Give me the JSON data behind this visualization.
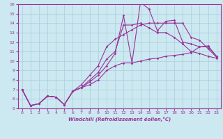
{
  "xlabel": "Windchill (Refroidissement éolien,°C)",
  "background_color": "#cce8f0",
  "line_color": "#993399",
  "xlim": [
    -0.5,
    23.5
  ],
  "ylim": [
    5,
    16
  ],
  "xticks": [
    0,
    1,
    2,
    3,
    4,
    5,
    6,
    7,
    8,
    9,
    10,
    11,
    12,
    13,
    14,
    15,
    16,
    17,
    18,
    19,
    20,
    21,
    22,
    23
  ],
  "yticks": [
    5,
    6,
    7,
    8,
    9,
    10,
    11,
    12,
    13,
    14,
    15,
    16
  ],
  "lines": [
    {
      "x": [
        0,
        1,
        2,
        3,
        4,
        5,
        6,
        7,
        8,
        9,
        10,
        11,
        12,
        13,
        14,
        15,
        16,
        17,
        18,
        19,
        20,
        21,
        22,
        23
      ],
      "y": [
        7.0,
        5.3,
        5.5,
        6.3,
        6.2,
        5.4,
        6.8,
        7.2,
        7.5,
        8.0,
        9.0,
        9.5,
        9.8,
        9.8,
        10.0,
        10.2,
        10.3,
        10.5,
        10.6,
        10.7,
        10.9,
        11.5,
        11.6,
        10.5
      ]
    },
    {
      "x": [
        0,
        1,
        2,
        3,
        4,
        5,
        6,
        7,
        8,
        9,
        10,
        11,
        12,
        13,
        14,
        15,
        16,
        17,
        18,
        19,
        20,
        21,
        22,
        23
      ],
      "y": [
        7.0,
        5.3,
        5.5,
        6.3,
        6.2,
        5.4,
        6.8,
        7.2,
        7.8,
        8.5,
        9.5,
        10.8,
        14.8,
        9.8,
        16.2,
        15.5,
        13.2,
        14.2,
        14.3,
        12.0,
        11.8,
        11.5,
        11.5,
        10.5
      ]
    },
    {
      "x": [
        0,
        1,
        2,
        3,
        4,
        5,
        6,
        7,
        8,
        9,
        10,
        11,
        12,
        13,
        14,
        15,
        16,
        17,
        18,
        19,
        20,
        21,
        22,
        23
      ],
      "y": [
        7.0,
        5.3,
        5.5,
        6.3,
        6.2,
        5.4,
        6.8,
        7.2,
        8.0,
        8.8,
        10.2,
        11.0,
        13.8,
        13.8,
        14.0,
        13.5,
        13.0,
        13.0,
        12.5,
        11.8,
        11.0,
        10.8,
        10.5,
        10.3
      ]
    },
    {
      "x": [
        0,
        1,
        2,
        3,
        4,
        5,
        6,
        7,
        8,
        9,
        10,
        11,
        12,
        13,
        14,
        15,
        16,
        17,
        18,
        19,
        20,
        21,
        22,
        23
      ],
      "y": [
        7.0,
        5.3,
        5.5,
        6.3,
        6.2,
        5.4,
        6.8,
        7.5,
        8.5,
        9.5,
        11.5,
        12.3,
        12.8,
        13.3,
        13.8,
        14.0,
        14.0,
        14.0,
        14.0,
        14.0,
        12.5,
        12.2,
        11.3,
        10.4
      ]
    }
  ]
}
